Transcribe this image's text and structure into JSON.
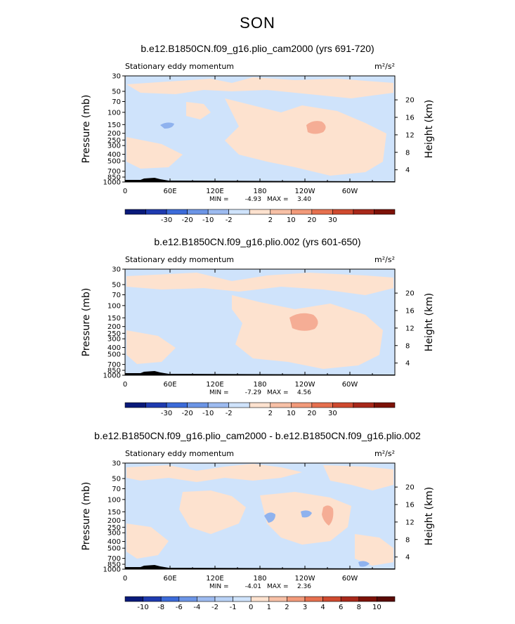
{
  "figure": {
    "season": "SON",
    "colors": {
      "neg_light": "#cfe3fb",
      "pos_light": "#fde2cf",
      "neg_mid": "#8fb2ee",
      "pos_mid": "#f5ad95",
      "terrain": "#000000"
    }
  },
  "chart_data": [
    {
      "type": "heatmap",
      "title": "b.e12.B1850CN.f09_g16.plio_cam2000 (yrs 691-720)",
      "subtitle_left": "Stationary eddy momentum",
      "units": "m²/s²",
      "xlabel": "",
      "ylabel": "Pressure (mb)",
      "ylabel_right": "Height (km)",
      "x_ticks": [
        "0",
        "60E",
        "120E",
        "180",
        "120W",
        "60W"
      ],
      "y_ticks": [
        "30",
        "50",
        "70",
        "100",
        "150",
        "200",
        "250",
        "300",
        "400",
        "500",
        "700",
        "850",
        "1000"
      ],
      "y_ticks_right": [
        "20",
        "16",
        "12",
        "8",
        "4"
      ],
      "min_label": "MIN =",
      "min": "-4.93",
      "max_label": "MAX =",
      "max": "3.40",
      "colorbar_labels": [
        "-30",
        "-20",
        "-10",
        "-2",
        "2",
        "10",
        "20",
        "30"
      ]
    },
    {
      "type": "heatmap",
      "title": "b.e12.B1850CN.f09_g16.plio.002 (yrs 601-650)",
      "subtitle_left": "Stationary eddy momentum",
      "units": "m²/s²",
      "xlabel": "",
      "ylabel": "Pressure (mb)",
      "ylabel_right": "Height (km)",
      "x_ticks": [
        "0",
        "60E",
        "120E",
        "180",
        "120W",
        "60W"
      ],
      "y_ticks": [
        "30",
        "50",
        "70",
        "100",
        "150",
        "200",
        "250",
        "300",
        "400",
        "500",
        "700",
        "850",
        "1000"
      ],
      "y_ticks_right": [
        "20",
        "16",
        "12",
        "8",
        "4"
      ],
      "min_label": "MIN =",
      "min": "-7.29",
      "max_label": "MAX =",
      "max": "4.56",
      "colorbar_labels": [
        "-30",
        "-20",
        "-10",
        "-2",
        "2",
        "10",
        "20",
        "30"
      ]
    },
    {
      "type": "heatmap",
      "title": "b.e12.B1850CN.f09_g16.plio_cam2000 - b.e12.B1850CN.f09_g16.plio.002",
      "subtitle_left": "Stationary eddy momentum",
      "units": "m²/s²",
      "xlabel": "",
      "ylabel": "Pressure (mb)",
      "ylabel_right": "Height (km)",
      "x_ticks": [
        "0",
        "60E",
        "120E",
        "180",
        "120W",
        "60W"
      ],
      "y_ticks": [
        "30",
        "50",
        "70",
        "100",
        "150",
        "200",
        "250",
        "300",
        "400",
        "500",
        "700",
        "850",
        "1000"
      ],
      "y_ticks_right": [
        "20",
        "16",
        "12",
        "8",
        "4"
      ],
      "min_label": "MIN =",
      "min": "-4.01",
      "max_label": "MAX =",
      "max": "2.36",
      "colorbar_labels": [
        "-10",
        "-8",
        "-6",
        "-4",
        "-2",
        "-1",
        "0",
        "1",
        "2",
        "3",
        "4",
        "6",
        "8",
        "10"
      ]
    }
  ],
  "colorbar_colors": [
    "#0a1a7a",
    "#1f3bb0",
    "#3c6bd9",
    "#6c95e6",
    "#9dbbf0",
    "#cfe3fb",
    "#fde2cf",
    "#f7c0a6",
    "#f29a7a",
    "#e6704f",
    "#cf4a2f",
    "#a8281a",
    "#7d1208"
  ]
}
